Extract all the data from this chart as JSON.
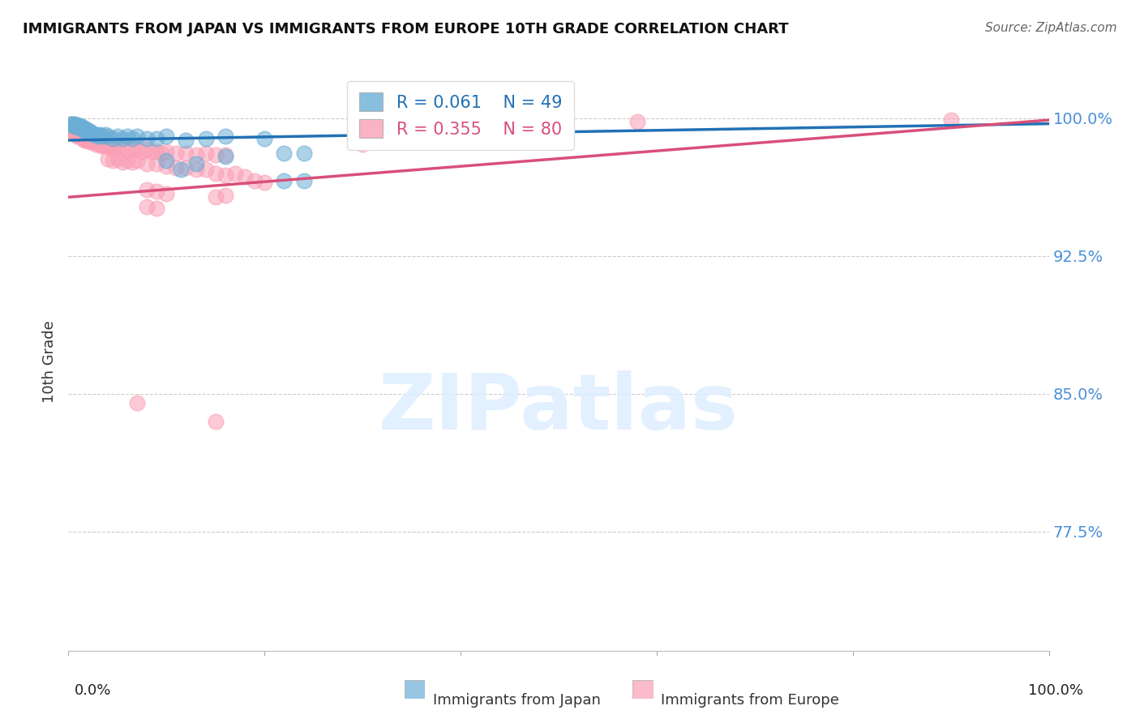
{
  "title": "IMMIGRANTS FROM JAPAN VS IMMIGRANTS FROM EUROPE 10TH GRADE CORRELATION CHART",
  "source": "Source: ZipAtlas.com",
  "ylabel": "10th Grade",
  "legend_japan_r": "R = 0.061",
  "legend_japan_n": "N = 49",
  "legend_europe_r": "R = 0.355",
  "legend_europe_n": "N = 80",
  "watermark": "ZIPatlas",
  "japan_color": "#6baed6",
  "europe_color": "#fa9fb5",
  "japan_line_color": "#2171b5",
  "europe_line_color": "#d94f7a",
  "japan_scatter": [
    [
      0.003,
      0.997
    ],
    [
      0.004,
      0.997
    ],
    [
      0.005,
      0.996
    ],
    [
      0.006,
      0.996
    ],
    [
      0.007,
      0.997
    ],
    [
      0.008,
      0.996
    ],
    [
      0.009,
      0.995
    ],
    [
      0.01,
      0.996
    ],
    [
      0.011,
      0.995
    ],
    [
      0.012,
      0.996
    ],
    [
      0.013,
      0.995
    ],
    [
      0.014,
      0.994
    ],
    [
      0.015,
      0.995
    ],
    [
      0.016,
      0.994
    ],
    [
      0.017,
      0.993
    ],
    [
      0.018,
      0.994
    ],
    [
      0.019,
      0.993
    ],
    [
      0.02,
      0.993
    ],
    [
      0.021,
      0.992
    ],
    [
      0.022,
      0.993
    ],
    [
      0.024,
      0.992
    ],
    [
      0.026,
      0.991
    ],
    [
      0.028,
      0.991
    ],
    [
      0.03,
      0.99
    ],
    [
      0.032,
      0.991
    ],
    [
      0.035,
      0.99
    ],
    [
      0.038,
      0.991
    ],
    [
      0.04,
      0.99
    ],
    [
      0.045,
      0.989
    ],
    [
      0.05,
      0.99
    ],
    [
      0.055,
      0.989
    ],
    [
      0.06,
      0.99
    ],
    [
      0.065,
      0.989
    ],
    [
      0.07,
      0.99
    ],
    [
      0.08,
      0.989
    ],
    [
      0.09,
      0.989
    ],
    [
      0.1,
      0.99
    ],
    [
      0.12,
      0.988
    ],
    [
      0.14,
      0.989
    ],
    [
      0.16,
      0.99
    ],
    [
      0.2,
      0.989
    ],
    [
      0.22,
      0.981
    ],
    [
      0.24,
      0.981
    ],
    [
      0.1,
      0.977
    ],
    [
      0.16,
      0.979
    ],
    [
      0.22,
      0.966
    ],
    [
      0.24,
      0.966
    ],
    [
      0.115,
      0.972
    ],
    [
      0.13,
      0.975
    ]
  ],
  "europe_scatter": [
    [
      0.002,
      0.997
    ],
    [
      0.004,
      0.993
    ],
    [
      0.005,
      0.993
    ],
    [
      0.006,
      0.992
    ],
    [
      0.007,
      0.992
    ],
    [
      0.008,
      0.991
    ],
    [
      0.009,
      0.99
    ],
    [
      0.01,
      0.991
    ],
    [
      0.011,
      0.99
    ],
    [
      0.012,
      0.991
    ],
    [
      0.013,
      0.99
    ],
    [
      0.014,
      0.99
    ],
    [
      0.015,
      0.989
    ],
    [
      0.016,
      0.988
    ],
    [
      0.017,
      0.989
    ],
    [
      0.018,
      0.988
    ],
    [
      0.02,
      0.988
    ],
    [
      0.022,
      0.987
    ],
    [
      0.024,
      0.988
    ],
    [
      0.026,
      0.987
    ],
    [
      0.028,
      0.986
    ],
    [
      0.03,
      0.987
    ],
    [
      0.032,
      0.986
    ],
    [
      0.034,
      0.985
    ],
    [
      0.036,
      0.986
    ],
    [
      0.038,
      0.985
    ],
    [
      0.04,
      0.985
    ],
    [
      0.042,
      0.984
    ],
    [
      0.044,
      0.985
    ],
    [
      0.046,
      0.984
    ],
    [
      0.05,
      0.984
    ],
    [
      0.055,
      0.984
    ],
    [
      0.06,
      0.983
    ],
    [
      0.065,
      0.984
    ],
    [
      0.07,
      0.983
    ],
    [
      0.075,
      0.982
    ],
    [
      0.08,
      0.983
    ],
    [
      0.085,
      0.982
    ],
    [
      0.09,
      0.982
    ],
    [
      0.095,
      0.981
    ],
    [
      0.1,
      0.982
    ],
    [
      0.11,
      0.981
    ],
    [
      0.12,
      0.981
    ],
    [
      0.13,
      0.98
    ],
    [
      0.14,
      0.981
    ],
    [
      0.15,
      0.98
    ],
    [
      0.16,
      0.98
    ],
    [
      0.04,
      0.978
    ],
    [
      0.045,
      0.977
    ],
    [
      0.05,
      0.978
    ],
    [
      0.055,
      0.976
    ],
    [
      0.06,
      0.977
    ],
    [
      0.065,
      0.976
    ],
    [
      0.07,
      0.977
    ],
    [
      0.08,
      0.975
    ],
    [
      0.09,
      0.975
    ],
    [
      0.1,
      0.974
    ],
    [
      0.11,
      0.973
    ],
    [
      0.12,
      0.973
    ],
    [
      0.13,
      0.972
    ],
    [
      0.14,
      0.972
    ],
    [
      0.15,
      0.97
    ],
    [
      0.16,
      0.969
    ],
    [
      0.17,
      0.97
    ],
    [
      0.18,
      0.968
    ],
    [
      0.19,
      0.966
    ],
    [
      0.2,
      0.965
    ],
    [
      0.08,
      0.961
    ],
    [
      0.09,
      0.96
    ],
    [
      0.1,
      0.959
    ],
    [
      0.15,
      0.957
    ],
    [
      0.16,
      0.958
    ],
    [
      0.08,
      0.952
    ],
    [
      0.09,
      0.951
    ],
    [
      0.07,
      0.845
    ],
    [
      0.15,
      0.835
    ],
    [
      0.58,
      0.998
    ],
    [
      0.9,
      0.999
    ],
    [
      0.3,
      0.986
    ],
    [
      0.45,
      0.988
    ]
  ],
  "xmin": 0.0,
  "xmax": 1.0,
  "ymin": 0.71,
  "ymax": 1.025,
  "yticks": [
    0.775,
    0.85,
    0.925,
    1.0
  ],
  "ytick_labels": [
    "77.5%",
    "85.0%",
    "92.5%",
    "100.0%"
  ],
  "grid_color": "#cccccc",
  "background_color": "#ffffff"
}
